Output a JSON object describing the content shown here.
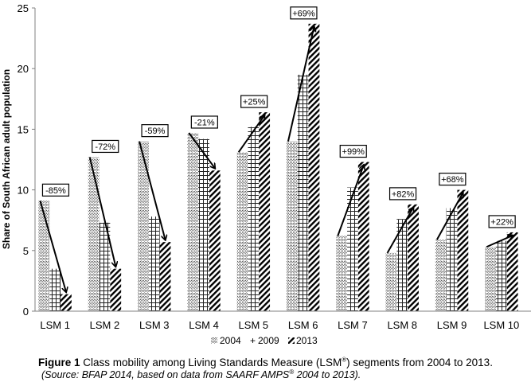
{
  "chart_data": {
    "type": "bar",
    "title": "",
    "xlabel": "",
    "ylabel": "Share of South African adult population",
    "ylim": [
      0,
      25
    ],
    "yticks": [
      0,
      5,
      10,
      15,
      20,
      25
    ],
    "grid": false,
    "legend_position": "bottom",
    "categories": [
      "LSM 1",
      "LSM 2",
      "LSM 3",
      "LSM 4",
      "LSM 5",
      "LSM 6",
      "LSM 7",
      "LSM 8",
      "LSM 9",
      "LSM 10"
    ],
    "series": [
      {
        "name": "2004",
        "pattern": "dotted-grid",
        "values": [
          9.1,
          12.7,
          14.0,
          14.7,
          13.1,
          14.0,
          6.2,
          4.8,
          5.9,
          5.3
        ]
      },
      {
        "name": "2009",
        "pattern": "cross-grid",
        "values": [
          3.5,
          7.3,
          7.8,
          14.2,
          15.2,
          19.5,
          10.2,
          7.6,
          8.5,
          5.8
        ]
      },
      {
        "name": "2013",
        "pattern": "diagonal-hatch",
        "values": [
          1.4,
          3.5,
          5.7,
          11.6,
          16.4,
          23.7,
          12.3,
          8.8,
          10.0,
          6.5
        ]
      }
    ],
    "annotations": [
      "-85%",
      "-72%",
      "-59%",
      "-21%",
      "+25%",
      "+69%",
      "+99%",
      "+82%",
      "+68%",
      "+22%"
    ],
    "legend": [
      {
        "symbol": "▩",
        "label": "2004"
      },
      {
        "symbol": "+",
        "label": "2009"
      },
      {
        "symbol": "▨",
        "label": "2013"
      }
    ]
  },
  "caption": {
    "figure_label": "Figure 1",
    "text_before": " Class mobility among Living Standards Measure (LSM",
    "sup": "®",
    "text_after": ") segments from 2004 to 2013."
  },
  "source": {
    "text_before": "(Source: BFAP 2014, based on data from SAARF AMPS",
    "sup": "®",
    "text_after": " 2004 to 2013)."
  },
  "colors": {
    "axis": "#808080",
    "ink": "#000000",
    "background": "#ffffff"
  }
}
